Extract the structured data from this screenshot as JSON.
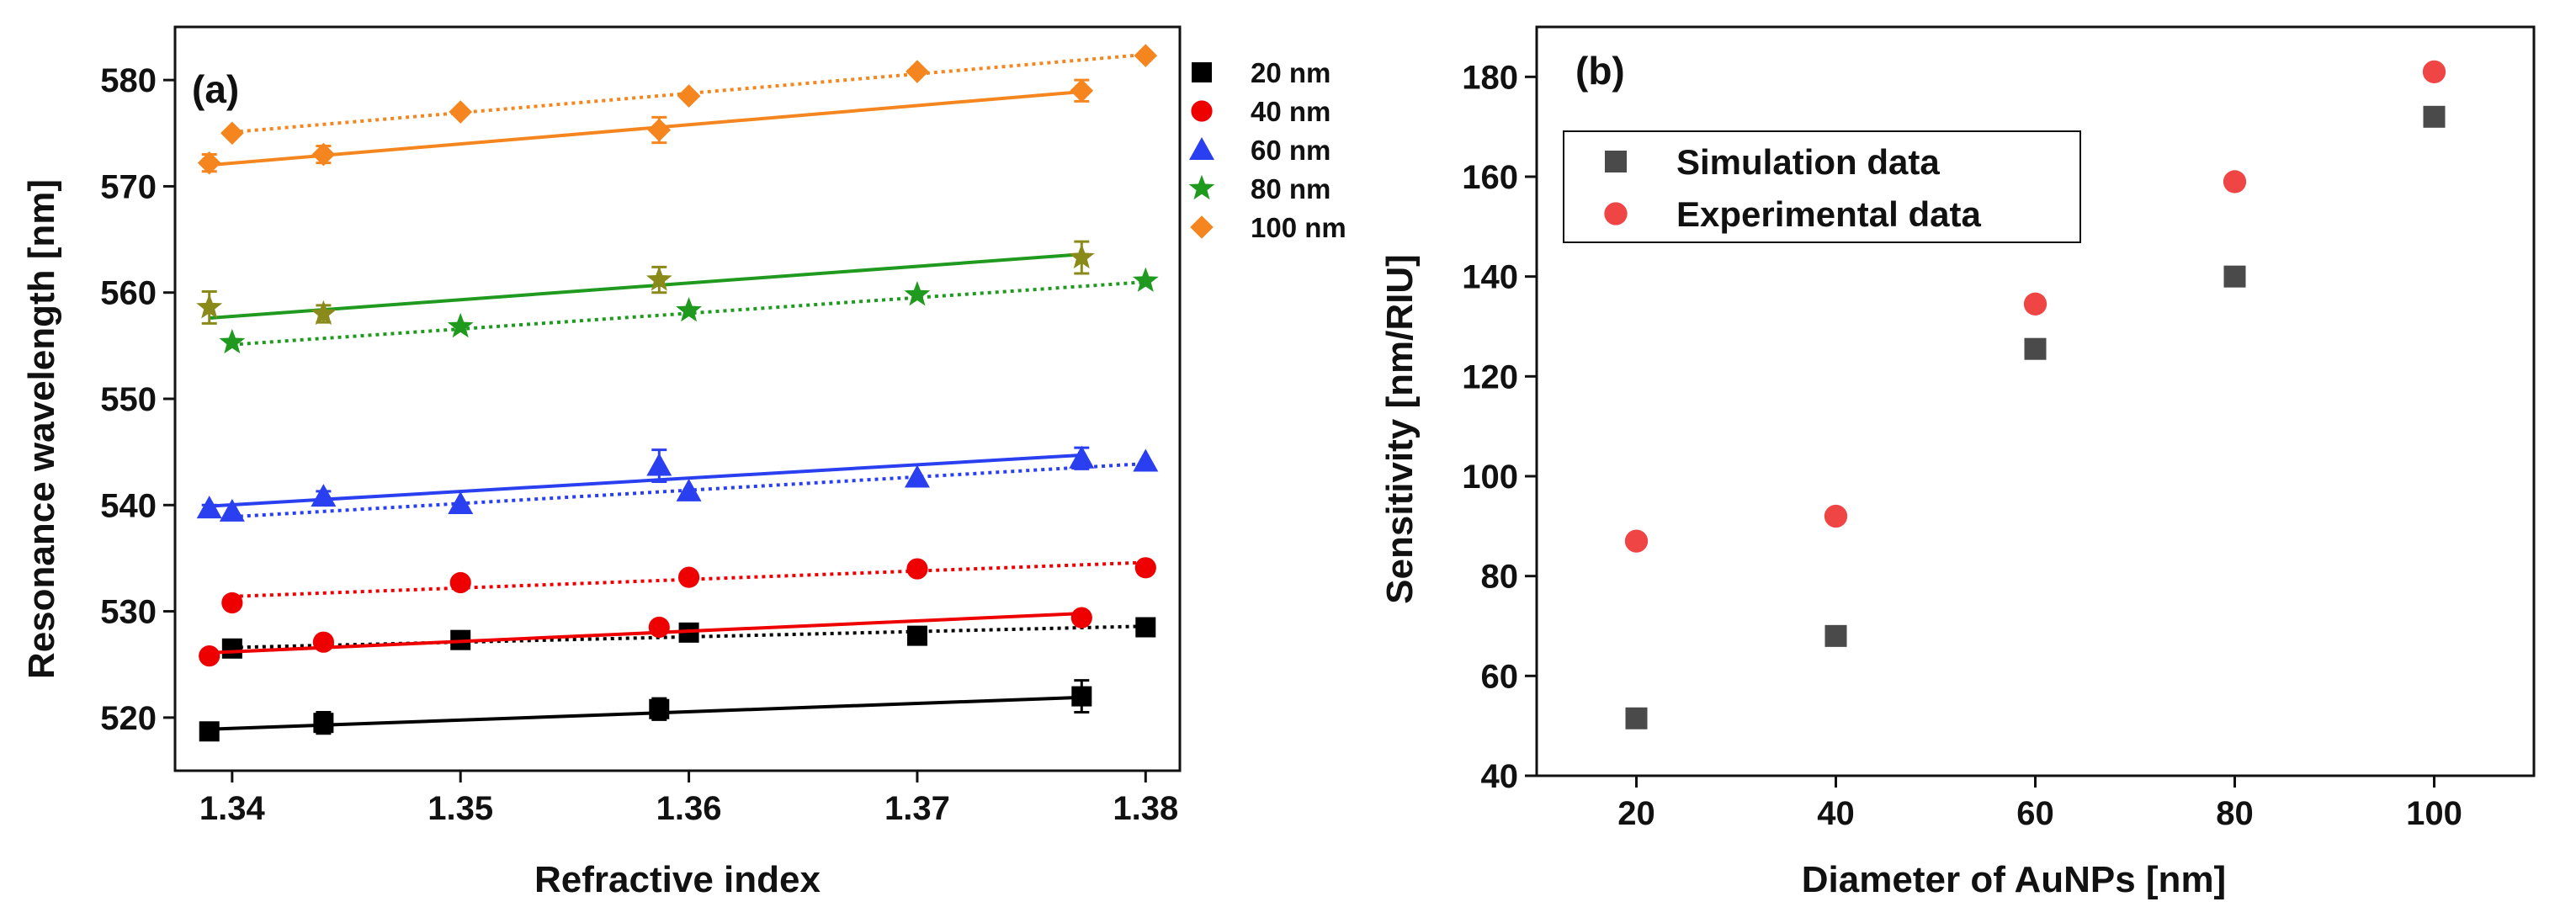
{
  "chart_data": [
    {
      "type": "line",
      "panel_label": "(a)",
      "xlabel": "Refractive index",
      "ylabel": "Resonance wavelength [nm]",
      "xlim": [
        1.3375,
        1.3815
      ],
      "ylim": [
        515,
        585
      ],
      "xticks": [
        1.34,
        1.35,
        1.36,
        1.37,
        1.38
      ],
      "xtick_labels": [
        "1.34",
        "1.35",
        "1.36",
        "1.37",
        "1.38"
      ],
      "yticks": [
        520,
        530,
        540,
        550,
        560,
        570,
        580
      ],
      "ytick_labels": [
        "520",
        "530",
        "540",
        "550",
        "560",
        "570",
        "580"
      ],
      "legend_position": "outside-top-right",
      "series": [
        {
          "name": "20 nm",
          "color": "#000000",
          "marker": "square",
          "exp_x": [
            1.339,
            1.344,
            1.3587,
            1.3772
          ],
          "exp_y": [
            518.7,
            519.5,
            520.8,
            522.0
          ],
          "exp_err": [
            0.8,
            1.0,
            1.0,
            1.5
          ],
          "exp_fit": [
            [
              1.339,
              518.9
            ],
            [
              1.3772,
              521.9
            ]
          ],
          "sim_x": [
            1.34,
            1.35,
            1.36,
            1.37,
            1.38
          ],
          "sim_y": [
            526.5,
            527.3,
            528.0,
            527.7,
            528.5
          ],
          "sim_fit": [
            [
              1.34,
              526.6
            ],
            [
              1.38,
              528.6
            ]
          ]
        },
        {
          "name": "40 nm",
          "color": "#ee0000",
          "marker": "circle",
          "exp_x": [
            1.339,
            1.344,
            1.3587,
            1.3772
          ],
          "exp_y": [
            525.8,
            527.1,
            528.5,
            529.4
          ],
          "exp_err": [
            0.3,
            0.3,
            0.3,
            0.3
          ],
          "exp_fit": [
            [
              1.339,
              526.1
            ],
            [
              1.3772,
              529.8
            ]
          ],
          "sim_x": [
            1.34,
            1.35,
            1.36,
            1.37,
            1.38
          ],
          "sim_y": [
            530.8,
            532.7,
            533.2,
            534.0,
            534.1
          ],
          "sim_fit": [
            [
              1.34,
              531.4
            ],
            [
              1.38,
              534.6
            ]
          ]
        },
        {
          "name": "60 nm",
          "color": "#2a3ff0",
          "marker": "triangle",
          "exp_x": [
            1.339,
            1.344,
            1.3587,
            1.3772
          ],
          "exp_y": [
            539.7,
            540.8,
            543.7,
            544.4
          ],
          "exp_err": [
            0.3,
            0.5,
            1.5,
            1.0
          ],
          "exp_fit": [
            [
              1.339,
              539.9
            ],
            [
              1.3772,
              544.7
            ]
          ],
          "sim_x": [
            1.34,
            1.35,
            1.36,
            1.37,
            1.38
          ],
          "sim_y": [
            539.4,
            540.1,
            541.3,
            542.6,
            544.1
          ],
          "sim_fit": [
            [
              1.34,
              538.9
            ],
            [
              1.38,
              543.9
            ]
          ]
        },
        {
          "name": "80 nm",
          "color": "#1f9a1f",
          "marker": "star",
          "exp_x": [
            1.339,
            1.344,
            1.3587,
            1.3772
          ],
          "exp_y": [
            558.6,
            558.0,
            561.2,
            563.3
          ],
          "exp_err": [
            1.5,
            0.8,
            1.2,
            1.5
          ],
          "exp_fit": [
            [
              1.339,
              557.6
            ],
            [
              1.3772,
              563.6
            ]
          ],
          "sim_x": [
            1.34,
            1.35,
            1.36,
            1.37,
            1.38
          ],
          "sim_y": [
            555.3,
            556.8,
            558.3,
            559.8,
            561.1
          ],
          "sim_fit": [
            [
              1.34,
              555.1
            ],
            [
              1.38,
              561.0
            ]
          ]
        },
        {
          "name": "100 nm",
          "color": "#f5861f",
          "marker": "diamond",
          "exp_x": [
            1.339,
            1.344,
            1.3587,
            1.3772
          ],
          "exp_y": [
            572.2,
            573.0,
            575.3,
            579.0
          ],
          "exp_err": [
            0.8,
            0.8,
            1.2,
            1.0
          ],
          "exp_fit": [
            [
              1.339,
              572.0
            ],
            [
              1.3772,
              578.9
            ]
          ],
          "sim_x": [
            1.34,
            1.35,
            1.36,
            1.37,
            1.38
          ],
          "sim_y": [
            575.0,
            577.0,
            578.5,
            580.8,
            582.3
          ],
          "sim_fit": [
            [
              1.34,
              575.1
            ],
            [
              1.38,
              582.4
            ]
          ]
        }
      ]
    },
    {
      "type": "scatter",
      "panel_label": "(b)",
      "xlabel": "Diameter of AuNPs [nm]",
      "ylabel": "Sensitivity [nm/RIU]",
      "xlim": [
        10,
        110
      ],
      "ylim": [
        40,
        190
      ],
      "xticks": [
        20,
        40,
        60,
        80,
        100
      ],
      "xtick_labels": [
        "20",
        "40",
        "60",
        "80",
        "100"
      ],
      "yticks": [
        40,
        60,
        80,
        100,
        120,
        140,
        160,
        180
      ],
      "ytick_labels": [
        "40",
        "60",
        "80",
        "100",
        "120",
        "140",
        "160",
        "180"
      ],
      "legend_position": "top-left",
      "series": [
        {
          "name": "Simulation data",
          "color": "#4a4a4a",
          "marker": "square",
          "x": [
            20,
            40,
            60,
            80,
            100
          ],
          "y": [
            51.5,
            68,
            125.5,
            140,
            172
          ]
        },
        {
          "name": "Experimental data",
          "color": "#f04545",
          "marker": "circle",
          "x": [
            20,
            40,
            60,
            80,
            100
          ],
          "y": [
            87,
            92,
            134.5,
            159,
            181
          ]
        }
      ]
    }
  ]
}
